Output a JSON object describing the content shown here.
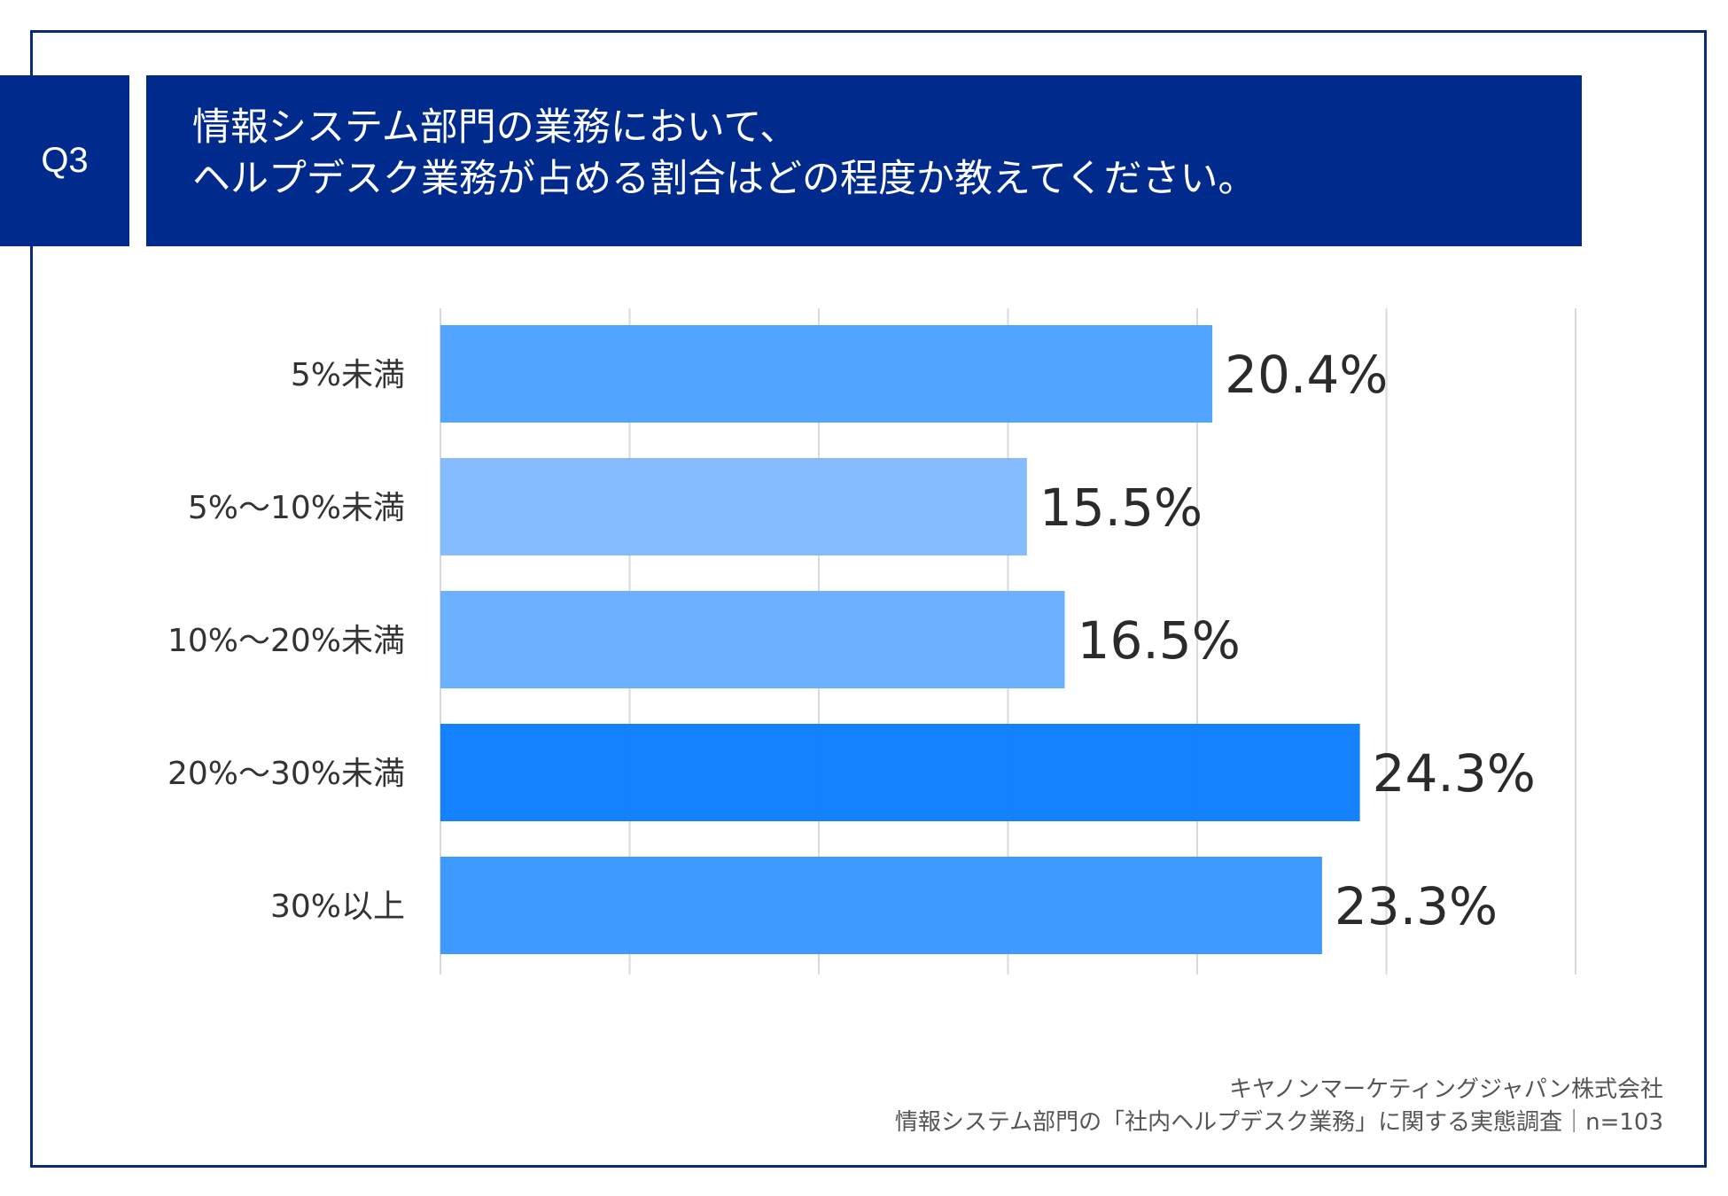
{
  "question": {
    "badge": "Q3",
    "title_line1": "情報システム部門の業務において、",
    "title_line2": "ヘルプデスク業務が占める割合はどの程度か教えてください。"
  },
  "chart_data": {
    "type": "bar",
    "orientation": "horizontal",
    "title": "情報システム部門の業務において、ヘルプデスク業務が占める割合はどの程度か教えてください。",
    "categories": [
      "5%未満",
      "5%〜10%未満",
      "10%〜20%未満",
      "20%〜30%未満",
      "30%以上"
    ],
    "values": [
      20.4,
      15.5,
      16.5,
      24.3,
      23.3
    ],
    "value_labels": [
      "20.4%",
      "15.5%",
      "16.5%",
      "24.3%",
      "23.3%"
    ],
    "unit": "%",
    "xlim": [
      0,
      30
    ],
    "grid": true,
    "bar_colors": [
      "#4aa0ff",
      "#80b9ff",
      "#66aeff",
      "#0a7cff",
      "#3796ff"
    ]
  },
  "source": {
    "company": "キヤノンマーケティングジャパン株式会社",
    "survey": "情報システム部門の「社内ヘルプデスク業務」に関する実態調査｜n=103"
  }
}
